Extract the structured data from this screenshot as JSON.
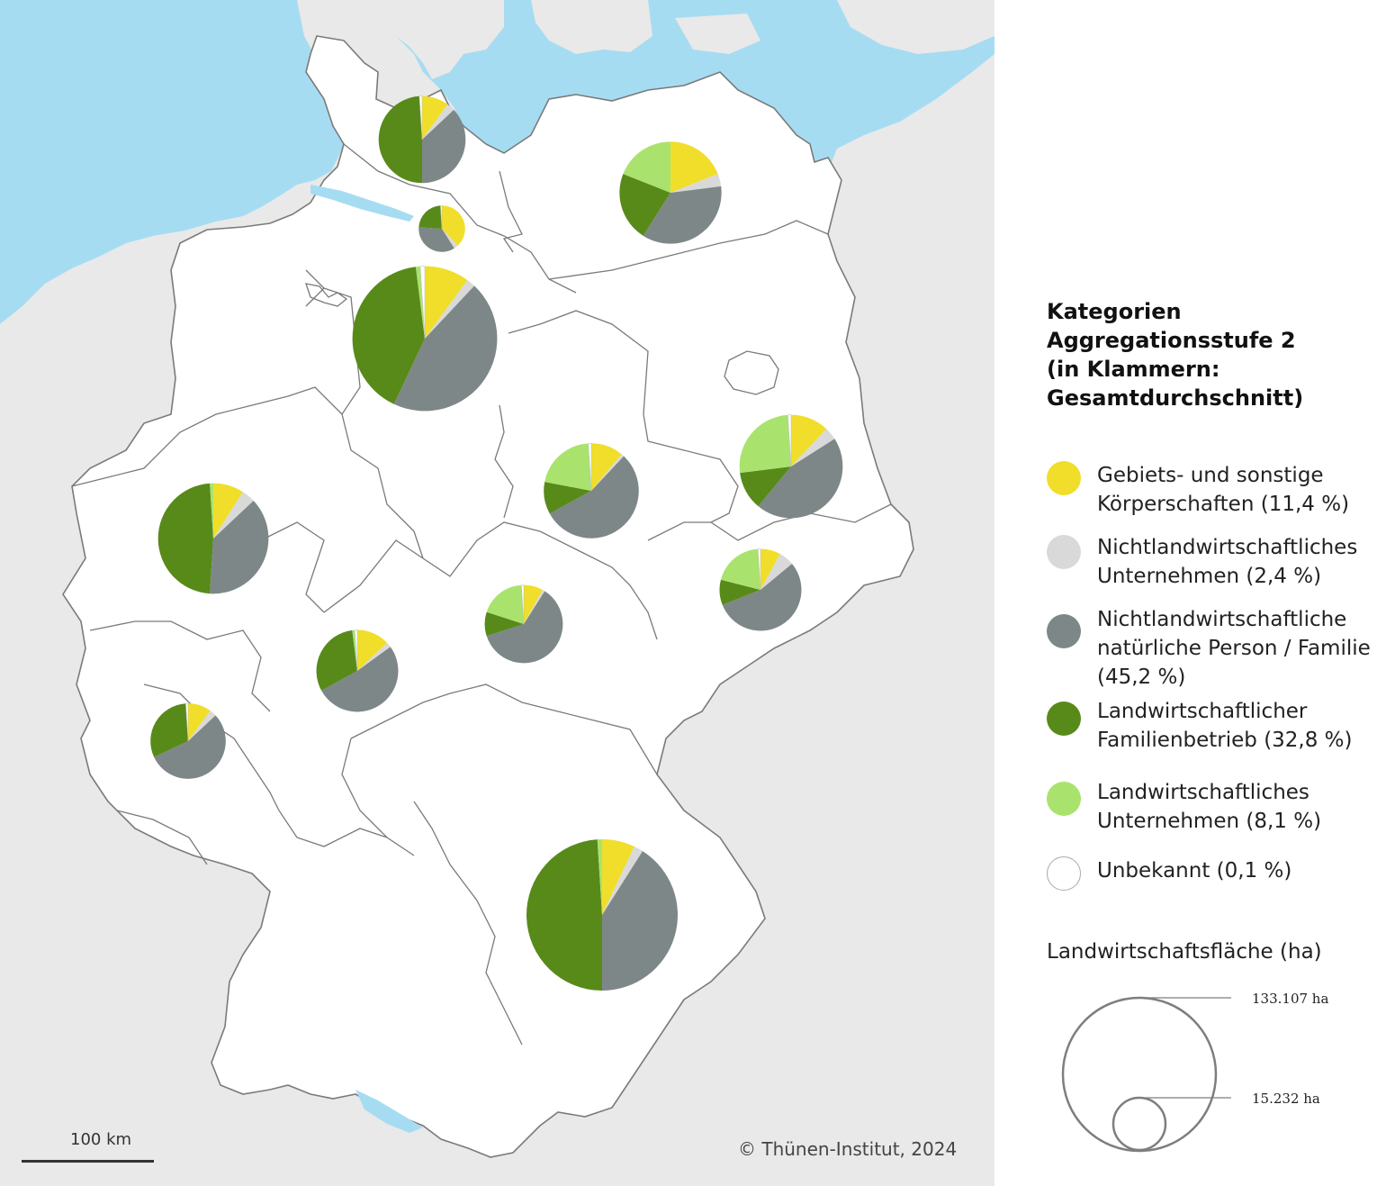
{
  "legend": {
    "title_lines": [
      "Kategorien",
      "Aggregationsstufe 2",
      "(in Klammern:",
      "Gesamtdurchschnitt)"
    ],
    "items": [
      {
        "key": "gebiet",
        "lines": [
          "Gebiets- und sonstige",
          "Körperschaften (11,4 %)"
        ],
        "color": "#f0de2a",
        "share": 11.4
      },
      {
        "key": "nlu",
        "lines": [
          "Nichtlandwirtschaftliches",
          "Unternehmen (2,4 %)"
        ],
        "color": "#d8d9d8",
        "share": 2.4
      },
      {
        "key": "nlp",
        "lines": [
          "Nichtlandwirtschaftliche",
          "natürliche Person / Familie",
          "(45,2 %)"
        ],
        "color": "#7e8788",
        "share": 45.2
      },
      {
        "key": "lwf",
        "lines": [
          "Landwirtschaftlicher",
          "Familienbetrieb (32,8 %)"
        ],
        "color": "#588a1a",
        "share": 32.8
      },
      {
        "key": "lwu",
        "lines": [
          "Landwirtschaftliches",
          "Unternehmen (8,1 %)"
        ],
        "color": "#a9e36e",
        "share": 8.1
      },
      {
        "key": "unb",
        "lines": [
          "Unbekannt (0,1 %)"
        ],
        "color": "#ffffff",
        "share": 0.1
      }
    ]
  },
  "size_legend": {
    "title": "Landwirtschaftsfläche (ha)",
    "large_label": "133.107 ha",
    "small_label": "15.232 ha",
    "large_value": 133107,
    "small_value": 15232
  },
  "scale_bar": {
    "label": "100 km"
  },
  "copyright": "© Thünen-Institut, 2024",
  "colors": {
    "sea": "#a6dcf2",
    "land": "#ffffff",
    "outside": "#e9e9e9",
    "border": "#7a7a7a",
    "water": "#a6dcf2"
  },
  "chart_data": {
    "type": "pie",
    "series_order": [
      "gebiet",
      "nlu",
      "nlp",
      "lwf",
      "lwu",
      "unb"
    ],
    "pies": [
      {
        "region": "SH",
        "area_ha": 44000,
        "shares": {
          "gebiet": 10,
          "nlu": 3,
          "nlp": 37,
          "lwf": 49,
          "lwu": 0,
          "unb": 1
        }
      },
      {
        "region": "HH",
        "area_ha": 12500,
        "shares": {
          "gebiet": 38,
          "nlu": 3,
          "nlp": 35,
          "lwf": 23,
          "lwu": 0,
          "unb": 1
        }
      },
      {
        "region": "MV",
        "area_ha": 60500,
        "shares": {
          "gebiet": 19,
          "nlu": 4,
          "nlp": 36,
          "lwf": 22,
          "lwu": 19,
          "unb": 0
        }
      },
      {
        "region": "NI",
        "area_ha": 122000,
        "shares": {
          "gebiet": 10,
          "nlu": 2,
          "nlp": 45,
          "lwf": 41,
          "lwu": 1,
          "unb": 1
        }
      },
      {
        "region": "ST",
        "area_ha": 52500,
        "shares": {
          "gebiet": 11,
          "nlu": 1,
          "nlp": 55,
          "lwf": 11,
          "lwu": 21,
          "unb": 1
        }
      },
      {
        "region": "BB",
        "area_ha": 62000,
        "shares": {
          "gebiet": 12,
          "nlu": 4,
          "nlp": 45,
          "lwf": 12,
          "lwu": 26,
          "unb": 1
        }
      },
      {
        "region": "NW",
        "area_ha": 71000,
        "shares": {
          "gebiet": 9,
          "nlu": 4,
          "nlp": 38,
          "lwf": 48,
          "lwu": 1,
          "unb": 0
        }
      },
      {
        "region": "SN",
        "area_ha": 39000,
        "shares": {
          "gebiet": 8,
          "nlu": 6,
          "nlp": 55,
          "lwf": 10,
          "lwu": 20,
          "unb": 1
        }
      },
      {
        "region": "TH",
        "area_ha": 35500,
        "shares": {
          "gebiet": 8,
          "nlu": 1,
          "nlp": 61,
          "lwf": 10,
          "lwu": 19,
          "unb": 1
        }
      },
      {
        "region": "HE",
        "area_ha": 39000,
        "shares": {
          "gebiet": 13,
          "nlu": 2,
          "nlp": 52,
          "lwf": 31,
          "lwu": 1,
          "unb": 1
        }
      },
      {
        "region": "RP",
        "area_ha": 33000,
        "shares": {
          "gebiet": 10,
          "nlu": 3,
          "nlp": 55,
          "lwf": 31,
          "lwu": 0,
          "unb": 1
        }
      },
      {
        "region": "BY",
        "area_ha": 133107,
        "shares": {
          "gebiet": 7,
          "nlu": 2,
          "nlp": 41,
          "lwf": 49,
          "lwu": 1,
          "unb": 0
        }
      }
    ]
  }
}
